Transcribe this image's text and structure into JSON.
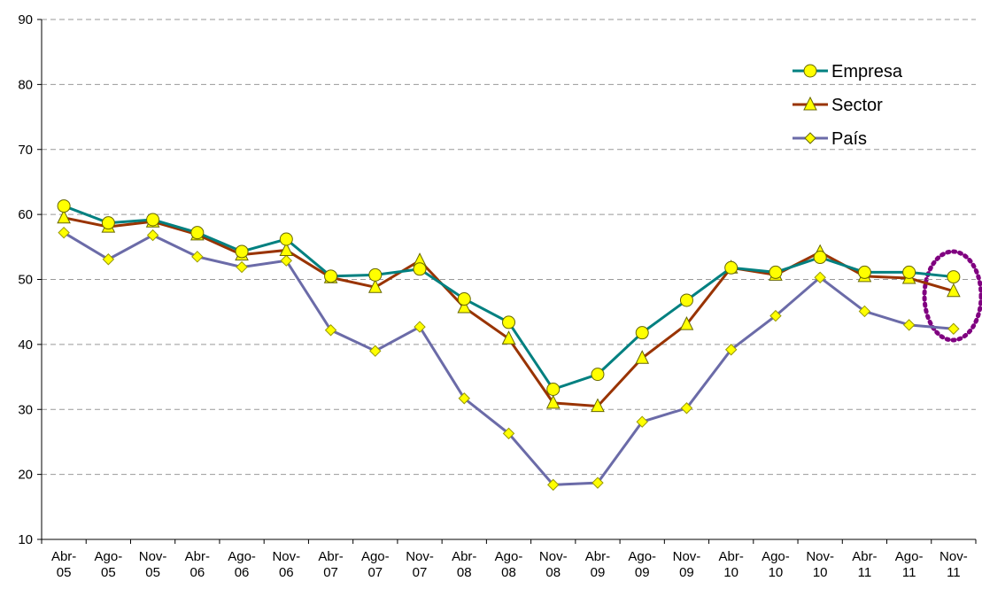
{
  "chart_data": {
    "type": "line",
    "categories": [
      "Abr-05",
      "Ago-05",
      "Nov-05",
      "Abr-06",
      "Ago-06",
      "Nov-06",
      "Abr-07",
      "Ago-07",
      "Nov-07",
      "Abr-08",
      "Ago-08",
      "Nov-08",
      "Abr-09",
      "Ago-09",
      "Nov-09",
      "Abr-10",
      "Ago-10",
      "Nov-10",
      "Abr-11",
      "Ago-11",
      "Nov-11"
    ],
    "series": [
      {
        "name": "Empresa",
        "color": "#008080",
        "marker": "circle",
        "values": [
          61.3,
          58.7,
          59.2,
          57.2,
          54.3,
          56.2,
          50.5,
          50.7,
          51.6,
          47.0,
          43.4,
          33.1,
          35.4,
          41.8,
          46.8,
          51.8,
          51.1,
          53.4,
          51.1,
          51.1,
          50.4
        ]
      },
      {
        "name": "Sector",
        "color": "#993300",
        "marker": "triangle",
        "values": [
          59.5,
          58.1,
          58.9,
          56.9,
          53.8,
          54.5,
          50.3,
          48.8,
          52.9,
          45.7,
          40.9,
          31.0,
          30.5,
          37.9,
          43.1,
          51.8,
          50.7,
          54.2,
          50.5,
          50.2,
          48.2
        ]
      },
      {
        "name": "País",
        "color": "#6b6ba8",
        "marker": "diamond",
        "values": [
          57.2,
          53.1,
          56.8,
          53.5,
          51.9,
          52.9,
          42.2,
          39.0,
          42.7,
          31.7,
          26.3,
          18.4,
          18.7,
          28.1,
          30.2,
          39.2,
          44.4,
          50.3,
          45.1,
          43.0,
          42.4
        ]
      }
    ],
    "marker_fill": "#ffff00",
    "ylim": [
      10,
      90
    ],
    "yticks": [
      10,
      20,
      30,
      40,
      50,
      60,
      70,
      80,
      90
    ],
    "grid": true,
    "legend": "upper right"
  }
}
